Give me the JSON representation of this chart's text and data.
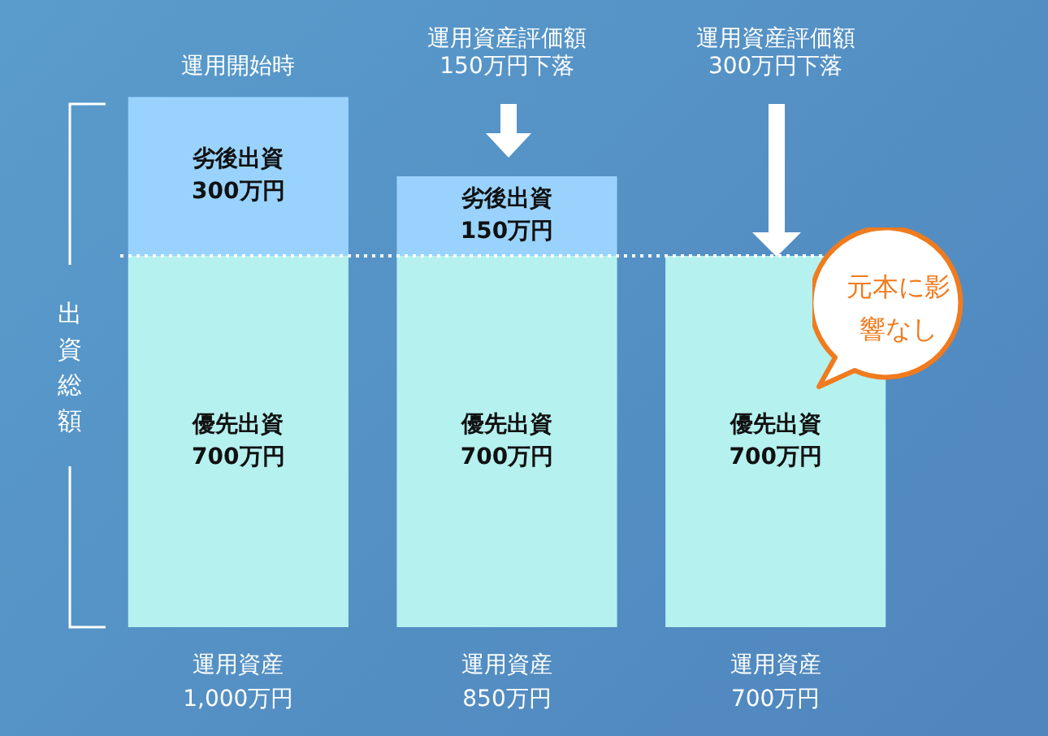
{
  "chart_data": {
    "type": "bar",
    "stacked": true,
    "categories": [
      "運用開始時",
      "運用資産評価額\n150万円下落",
      "運用資産評価額\n300万円下落"
    ],
    "series": [
      {
        "name": "優先出資",
        "color": "#b5f1ef",
        "values": [
          700,
          700,
          700
        ],
        "value_labels": [
          "700万円",
          "700万円",
          "700万円"
        ]
      },
      {
        "name": "劣後出資",
        "color": "#99d3fd",
        "values": [
          300,
          150,
          0
        ],
        "value_labels": [
          "300万円",
          "150万円",
          null
        ]
      }
    ],
    "totals": [
      "運用資産\n1,000万円",
      "運用資産\n850万円",
      "運用資産\n700万円"
    ],
    "ylim": [
      0,
      1000
    ],
    "tick_labels": "x",
    "grid": false,
    "legend": false,
    "ref_lines": [
      {
        "axis": "y",
        "value": 700,
        "color": "#ffffff",
        "line_style": "dotted"
      }
    ],
    "annotations": [
      "出資総額",
      "元本に影響なし"
    ]
  }
}
